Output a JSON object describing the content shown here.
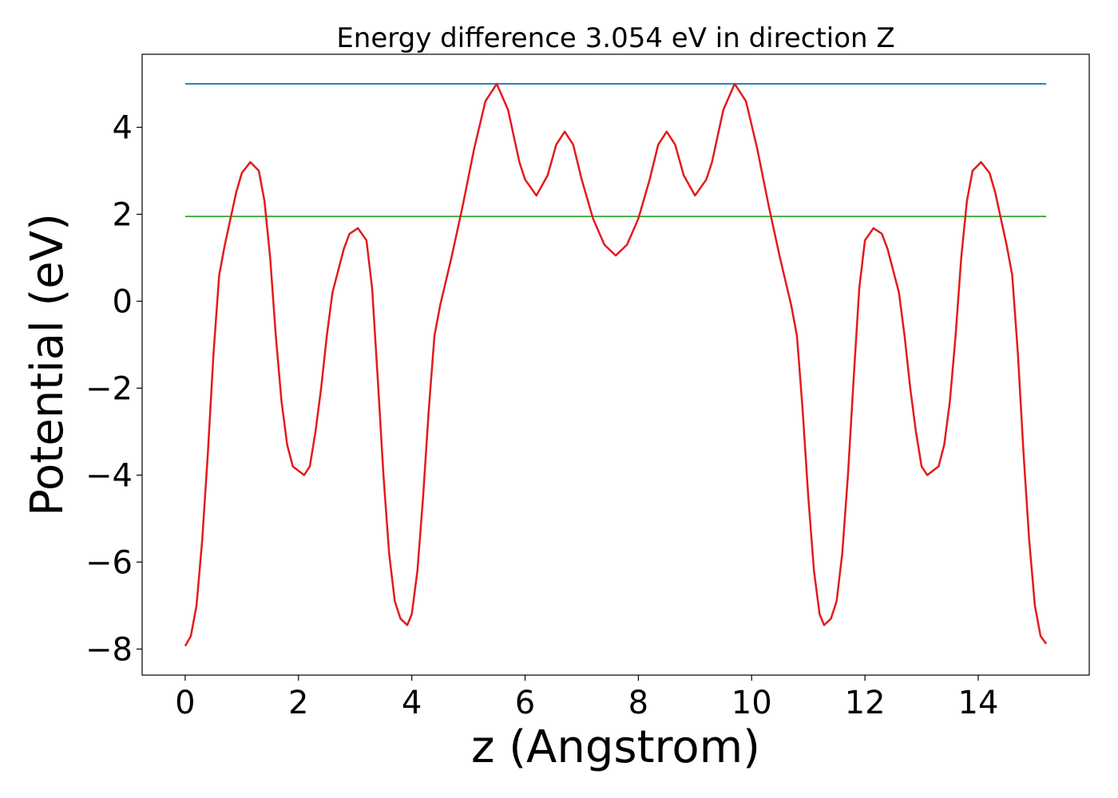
{
  "chart_data": {
    "type": "line",
    "title": "Energy difference 3.054 eV in direction Z",
    "x_label": "z (Angstrom)",
    "y_label": "Potential (eV)",
    "xlim": [
      -0.76,
      15.96
    ],
    "ylim": [
      -8.6,
      5.68
    ],
    "xticks": [
      0,
      2,
      4,
      6,
      8,
      10,
      12,
      14
    ],
    "yticks": [
      {
        "value": -8,
        "label": "−8"
      },
      {
        "value": -6,
        "label": "−6"
      },
      {
        "value": -4,
        "label": "−4"
      },
      {
        "value": -2,
        "label": "−2"
      },
      0,
      2,
      4
    ],
    "series": [
      {
        "color": "#1f77b4",
        "x": [
          0,
          15.2
        ],
        "values": [
          5.0,
          5.0
        ]
      },
      {
        "color": "#2ca02c",
        "x": [
          0,
          15.2
        ],
        "values": [
          1.95,
          1.95
        ]
      },
      {
        "color": "#e31a1c",
        "x": [
          0,
          0.1,
          0.2,
          0.3,
          0.4,
          0.5,
          0.6,
          0.7,
          0.8,
          0.9,
          1.0,
          1.15,
          1.3,
          1.4,
          1.5,
          1.6,
          1.7,
          1.8,
          1.9,
          2.1,
          2.2,
          2.3,
          2.4,
          2.5,
          2.6,
          2.7,
          2.8,
          2.9,
          3.05,
          3.2,
          3.3,
          3.4,
          3.5,
          3.6,
          3.7,
          3.8,
          3.92,
          4.0,
          4.1,
          4.2,
          4.3,
          4.4,
          4.5,
          4.7,
          4.9,
          5.1,
          5.3,
          5.5,
          5.7,
          5.9,
          6.0,
          6.2,
          6.4,
          6.55,
          6.7,
          6.85,
          7.0,
          7.2,
          7.4,
          7.6,
          7.8,
          8.0,
          8.2,
          8.35,
          8.5,
          8.65,
          8.8,
          9.0,
          9.2,
          9.3,
          9.5,
          9.7,
          9.9,
          10.1,
          10.3,
          10.5,
          10.7,
          10.8,
          10.9,
          11.0,
          11.1,
          11.2,
          11.28,
          11.4,
          11.5,
          11.6,
          11.7,
          11.8,
          11.9,
          12.0,
          12.15,
          12.3,
          12.4,
          12.5,
          12.6,
          12.7,
          12.8,
          12.9,
          13.0,
          13.1,
          13.3,
          13.4,
          13.5,
          13.6,
          13.7,
          13.8,
          13.9,
          14.05,
          14.2,
          14.3,
          14.4,
          14.5,
          14.6,
          14.7,
          14.8,
          14.9,
          15.0,
          15.1,
          15.2
        ],
        "values": [
          -7.93,
          -7.7,
          -7.0,
          -5.5,
          -3.5,
          -1.2,
          0.6,
          1.3,
          1.9,
          2.5,
          2.95,
          3.2,
          3.0,
          2.3,
          1.0,
          -0.8,
          -2.3,
          -3.3,
          -3.8,
          -4.0,
          -3.8,
          -3.0,
          -2.0,
          -0.8,
          0.2,
          0.7,
          1.2,
          1.55,
          1.68,
          1.4,
          0.3,
          -1.8,
          -4.0,
          -5.8,
          -6.9,
          -7.3,
          -7.45,
          -7.2,
          -6.2,
          -4.5,
          -2.5,
          -0.8,
          -0.1,
          1.0,
          2.2,
          3.5,
          4.6,
          5.0,
          4.4,
          3.2,
          2.8,
          2.43,
          2.9,
          3.6,
          3.9,
          3.6,
          2.8,
          1.9,
          1.3,
          1.05,
          1.3,
          1.9,
          2.8,
          3.6,
          3.9,
          3.6,
          2.9,
          2.43,
          2.8,
          3.2,
          4.4,
          5.0,
          4.6,
          3.5,
          2.2,
          1.0,
          -0.1,
          -0.8,
          -2.5,
          -4.5,
          -6.2,
          -7.2,
          -7.45,
          -7.3,
          -6.9,
          -5.8,
          -4.0,
          -1.8,
          0.3,
          1.4,
          1.68,
          1.55,
          1.2,
          0.7,
          0.2,
          -0.8,
          -2.0,
          -3.0,
          -3.8,
          -4.0,
          -3.8,
          -3.3,
          -2.3,
          -0.8,
          1.0,
          2.3,
          3.0,
          3.2,
          2.95,
          2.5,
          1.9,
          1.3,
          0.6,
          -1.2,
          -3.5,
          -5.5,
          -7.0,
          -7.7,
          -7.88
        ]
      }
    ]
  }
}
